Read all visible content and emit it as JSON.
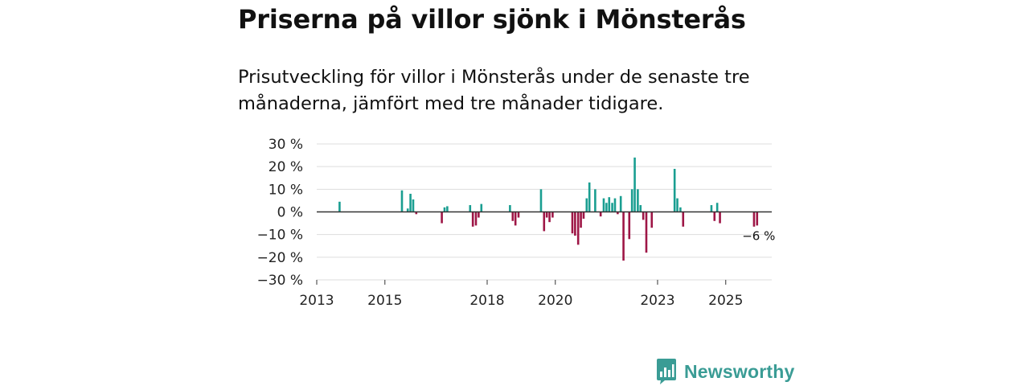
{
  "title": "Priserna på villor sjönk i Mönsterås",
  "subtitle": "Prisutveckling för villor i Mönsterås under de senaste tre månaderna, jämfört med tre månader tidigare.",
  "brand": {
    "name": "Newsworthy",
    "logo_icon": "newsworthy-chart-icon",
    "color": "#3a9c95"
  },
  "colors": {
    "positive": "#1a9e91",
    "negative": "#9e1646",
    "grid": "#dddddd",
    "zero_line": "#333333"
  },
  "chart_data": {
    "type": "bar",
    "title": "Priserna på villor sjönk i Mönsterås",
    "xlabel": "",
    "ylabel": "",
    "ylim": [
      -30,
      30
    ],
    "xlim": [
      2013.0,
      2026.35
    ],
    "y_ticks": [
      30,
      20,
      10,
      0,
      -10,
      -20,
      -30
    ],
    "y_tick_labels": [
      "30 %",
      "20 %",
      "10 %",
      "0 %",
      "−10 %",
      "−20 %",
      "−30 %"
    ],
    "x_ticks": [
      2013,
      2015,
      2018,
      2020,
      2023,
      2025
    ],
    "x_tick_labels": [
      "2013",
      "2015",
      "2018",
      "2020",
      "2023",
      "2025"
    ],
    "annotation": {
      "label": "−6 %",
      "value": -6,
      "date": 2025.92
    },
    "series": [
      {
        "name": "Prisutveckling",
        "unit": "%",
        "dates": [
          2013.67,
          2015.5,
          2015.67,
          2015.75,
          2015.83,
          2015.92,
          2016.67,
          2016.75,
          2016.83,
          2017.5,
          2017.58,
          2017.67,
          2017.75,
          2017.83,
          2018.67,
          2018.75,
          2018.83,
          2018.92,
          2019.58,
          2019.67,
          2019.75,
          2019.83,
          2019.92,
          2020.5,
          2020.58,
          2020.67,
          2020.75,
          2020.83,
          2020.92,
          2021.0,
          2021.17,
          2021.33,
          2021.42,
          2021.5,
          2021.58,
          2021.67,
          2021.75,
          2021.83,
          2021.92,
          2022.0,
          2022.17,
          2022.25,
          2022.33,
          2022.42,
          2022.5,
          2022.58,
          2022.67,
          2022.83,
          2023.5,
          2023.58,
          2023.67,
          2023.75,
          2024.58,
          2024.67,
          2024.75,
          2024.83,
          2025.83,
          2025.92
        ],
        "values": [
          4.5,
          9.5,
          1.5,
          8,
          5.5,
          -1,
          -5,
          2,
          2.5,
          3,
          -6.5,
          -6,
          -2.5,
          3.5,
          3,
          -4,
          -6,
          -2.5,
          10,
          -8.5,
          -2.5,
          -4.5,
          -2.5,
          -9.5,
          -10.5,
          -14.5,
          -7,
          -3,
          6,
          13,
          10,
          -2,
          6,
          4,
          6.5,
          4,
          6,
          -1,
          7,
          -21.5,
          -12,
          10,
          24,
          10,
          3,
          -3.5,
          -18,
          -7,
          19,
          6,
          2,
          -6.5,
          3,
          -4,
          4,
          -5,
          -6.5,
          -6
        ]
      }
    ]
  }
}
